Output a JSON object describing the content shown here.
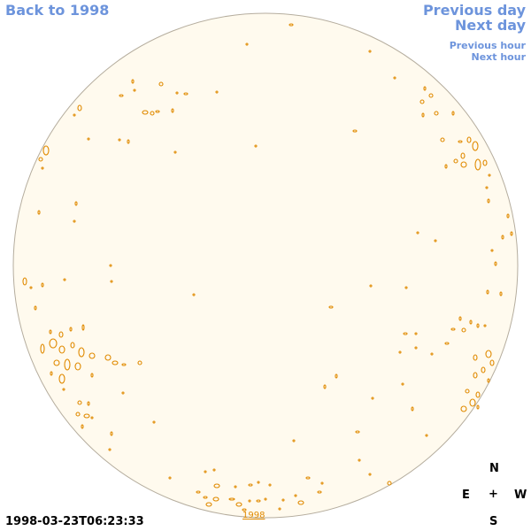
{
  "nav": {
    "back_label": "Back to 1998",
    "prev_day_label": "Previous day",
    "next_day_label": "Next day",
    "prev_hour_label": "Previous hour",
    "next_hour_label": "Next hour"
  },
  "timestamp": "1998-03-23T06:23:33",
  "year_label": "1998",
  "compass": {
    "north": "N",
    "east": "E",
    "center": "+",
    "west": "W",
    "south": "S"
  },
  "colors": {
    "disk_fill": "#fffaee",
    "disk_edge": "#b5ad9e",
    "contour": "#e08a00",
    "link": "#6d94dc"
  }
}
